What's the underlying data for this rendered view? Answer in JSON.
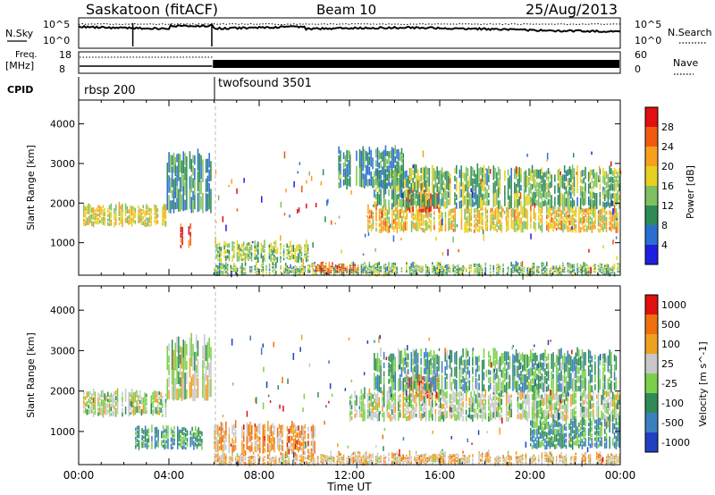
{
  "header": {
    "station": "Saskatoon (fitACF)",
    "beam": "Beam 10",
    "date": "25/Aug/2013"
  },
  "strip_nsky": {
    "left_label": "N.Sky",
    "right_label": "N.Search",
    "ticks": [
      "10^5",
      "10^0"
    ]
  },
  "strip_freq": {
    "left_label_1": "Freq.",
    "left_label_2": "[MHz]",
    "left_ticks": [
      "18",
      "8"
    ],
    "right_ticks": [
      "60",
      "0"
    ],
    "right_label": "Nave"
  },
  "strip_cpid": {
    "label": "CPID",
    "segments": [
      "rbsp 200",
      "twofsound 3501"
    ],
    "switch_time": "05:55"
  },
  "chart_data": [
    {
      "type": "heatmap",
      "title": "",
      "xlabel": "Time UT",
      "ylabel": "Slant Range [km]",
      "xticks": [
        "00:00",
        "04:00",
        "08:00",
        "12:00",
        "16:00",
        "20:00",
        "00:00"
      ],
      "yticks": [
        "1000",
        "2000",
        "3000",
        "4000"
      ],
      "xlim_hours": [
        0,
        24
      ],
      "ylim_km": [
        180,
        4600
      ],
      "colorbar": {
        "label": "Power [dB]",
        "ticks": [
          "4",
          "8",
          "12",
          "16",
          "20",
          "24",
          "28"
        ],
        "range": [
          0,
          30
        ],
        "colors": [
          "#1f1fe0",
          "#2a6fd0",
          "#2e8b57",
          "#7fc060",
          "#e8d020",
          "#f7a020",
          "#f05a10",
          "#e01010"
        ]
      },
      "bands": [
        {
          "t0": 0.2,
          "t1": 3.9,
          "r0": 1450,
          "r1": 1950,
          "level": 0.55
        },
        {
          "t0": 3.9,
          "t1": 5.9,
          "r0": 1800,
          "r1": 3300,
          "level": 0.3
        },
        {
          "t0": 4.5,
          "t1": 5.0,
          "r0": 900,
          "r1": 1500,
          "level": 0.9
        },
        {
          "t0": 6.0,
          "t1": 10.2,
          "r0": 550,
          "r1": 1000,
          "level": 0.45
        },
        {
          "t0": 6.0,
          "t1": 24.0,
          "r0": 200,
          "r1": 450,
          "level": 0.4
        },
        {
          "t0": 10.5,
          "t1": 12.5,
          "r0": 250,
          "r1": 450,
          "level": 0.85
        },
        {
          "t0": 12.8,
          "t1": 24.0,
          "r0": 1300,
          "r1": 1900,
          "level": 0.6
        },
        {
          "t0": 14.5,
          "t1": 16.0,
          "r0": 1800,
          "r1": 2300,
          "level": 0.95
        },
        {
          "t0": 13.0,
          "t1": 24.0,
          "r0": 1900,
          "r1": 2900,
          "level": 0.4
        },
        {
          "t0": 11.5,
          "t1": 14.5,
          "r0": 2400,
          "r1": 3400,
          "level": 0.3
        }
      ]
    },
    {
      "type": "heatmap",
      "title": "",
      "xlabel": "Time UT",
      "ylabel": "Slant Range [km]",
      "xticks": [
        "00:00",
        "04:00",
        "08:00",
        "12:00",
        "16:00",
        "20:00",
        "00:00"
      ],
      "yticks": [
        "1000",
        "2000",
        "3000",
        "4000"
      ],
      "xlim_hours": [
        0,
        24
      ],
      "ylim_km": [
        180,
        4600
      ],
      "colorbar": {
        "label": "Velocity [m s^-1]",
        "ticks": [
          "1000",
          "500",
          "100",
          "25",
          "-25",
          "-100",
          "-500",
          "-1000"
        ],
        "colors": [
          "#2040c0",
          "#3a7fbf",
          "#2e8b57",
          "#7ccf4a",
          "#c8c8c8",
          "#f0a020",
          "#f07010",
          "#e01010"
        ]
      },
      "bands": [
        {
          "t0": 0.2,
          "t1": 3.9,
          "r0": 1400,
          "r1": 2000,
          "level": 0.5
        },
        {
          "t0": 3.9,
          "t1": 5.9,
          "r0": 1800,
          "r1": 3300,
          "level": 0.5
        },
        {
          "t0": 2.5,
          "t1": 5.5,
          "r0": 600,
          "r1": 1100,
          "level": 0.3
        },
        {
          "t0": 6.0,
          "t1": 10.5,
          "r0": 500,
          "r1": 1200,
          "level": 0.72
        },
        {
          "t0": 6.0,
          "t1": 24.0,
          "r0": 200,
          "r1": 450,
          "level": 0.65
        },
        {
          "t0": 14.5,
          "t1": 16.0,
          "r0": 1800,
          "r1": 2400,
          "level": 0.88
        },
        {
          "t0": 12.0,
          "t1": 24.0,
          "r0": 1300,
          "r1": 2000,
          "level": 0.5
        },
        {
          "t0": 13.0,
          "t1": 24.0,
          "r0": 2000,
          "r1": 3000,
          "level": 0.35
        },
        {
          "t0": 20.0,
          "t1": 24.0,
          "r0": 600,
          "r1": 1300,
          "level": 0.3
        }
      ]
    }
  ]
}
